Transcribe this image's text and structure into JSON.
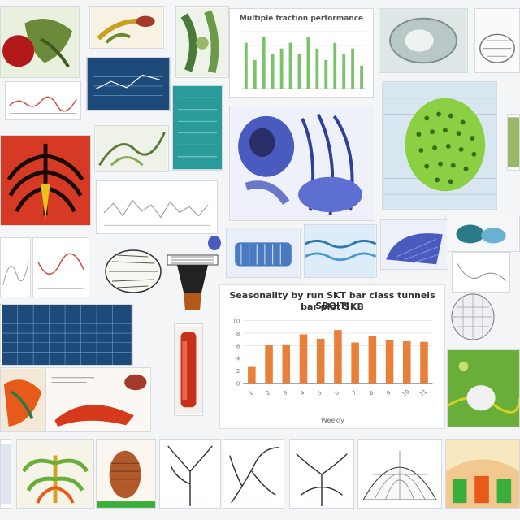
{
  "center_chart": {
    "title_line1": "Seasonality by run SKT bar class tunnels SBQITI",
    "title_line2": "bar plot SKB",
    "xlabel": "Weekly",
    "chart_data": {
      "type": "bar",
      "categories": [
        "1",
        "2",
        "3",
        "4",
        "5",
        "6",
        "7",
        "8",
        "9",
        "10",
        "11"
      ],
      "values": [
        2.6,
        6.1,
        6.2,
        7.8,
        7.1,
        8.5,
        6.5,
        7.5,
        6.9,
        6.7,
        6.6
      ],
      "ylim": [
        0,
        10
      ],
      "bar_color": "#e8803a"
    }
  },
  "top_chart": {
    "title": "Multiple fraction performance",
    "chart_data": {
      "type": "bar",
      "values": [
        8,
        5,
        9,
        6,
        7,
        8,
        6,
        9,
        7,
        5,
        8,
        6,
        7,
        4
      ],
      "ylim": [
        0,
        10
      ],
      "bar_color": "#7cc26b"
    }
  },
  "colors": {
    "accent_blue": "#4a5bc0",
    "accent_green": "#8bd043",
    "accent_red": "#d63a25",
    "accent_orange": "#e8803a",
    "panel_teal": "#2a9a9a",
    "panel_navy": "#1e4a7a"
  }
}
